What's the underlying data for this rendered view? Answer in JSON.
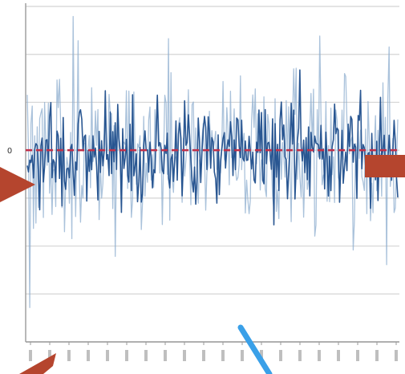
{
  "chart_data": {
    "type": "line",
    "title": "",
    "xlabel": "",
    "ylabel": "",
    "ylim": [
      -4,
      3
    ],
    "y_ticks": [
      3,
      2,
      1,
      0,
      -1,
      -2,
      -3,
      -4
    ],
    "y_tick_labels": [
      "",
      "",
      "",
      "0",
      "",
      "",
      "",
      ""
    ],
    "x_tick_count": 20,
    "grid": true,
    "reference_line": {
      "y": 0,
      "style": "dashed",
      "color": "#c0304a"
    },
    "series": [
      {
        "color": "#1f4e8c",
        "n_points": 300,
        "spread": 0.6,
        "spike": 1.8,
        "seed": 7
      },
      {
        "color": "#8eaecf",
        "n_points": 300,
        "spread": 1.0,
        "spike": 2.6,
        "seed": 19
      }
    ],
    "annotations": [
      {
        "shape": "arrow-left",
        "color": "#b5452e"
      },
      {
        "shape": "bar-right",
        "color": "#b5452e"
      },
      {
        "shape": "arrow-bottom-left",
        "color": "#b5452e"
      },
      {
        "shape": "line-bottom",
        "color": "#3aa0e8"
      }
    ]
  }
}
